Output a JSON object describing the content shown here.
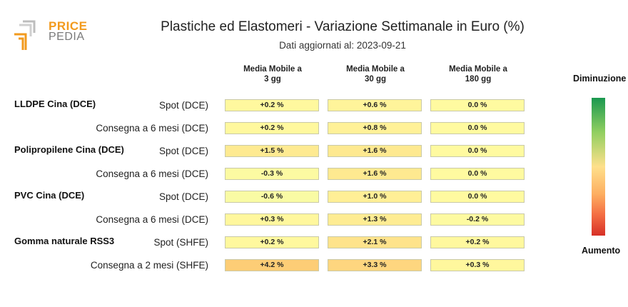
{
  "header": {
    "logo_line1": "PRICE",
    "logo_line2": "PEDIA",
    "title": "Plastiche ed Elastomeri - Variazione Settimanale in Euro (%)",
    "subtitle": "Dati aggiornati al: 2023-09-21"
  },
  "columns": [
    {
      "line1": "Media Mobile a",
      "line2": "3 gg"
    },
    {
      "line1": "Media Mobile a",
      "line2": "30 gg"
    },
    {
      "line1": "Media Mobile a",
      "line2": "180 gg"
    }
  ],
  "legend": {
    "top_label": "Diminuzione",
    "bottom_label": "Aumento",
    "colors": [
      "#1a9850",
      "#91cf60",
      "#fee08b",
      "#fdae61",
      "#f46d43",
      "#d73027"
    ]
  },
  "chart_data": {
    "type": "heatmap",
    "title": "Plastiche ed Elastomeri - Variazione Settimanale in Euro (%)",
    "subtitle": "Dati aggiornati al: 2023-09-21",
    "columns": [
      "Media Mobile a 3 gg",
      "Media Mobile a 30 gg",
      "Media Mobile a 180 gg"
    ],
    "color_scale": {
      "low_label": "Diminuzione",
      "high_label": "Aumento"
    },
    "rows": [
      {
        "group": "LLDPE Cina (DCE)",
        "label": "Spot (DCE)",
        "values": [
          0.2,
          0.6,
          0.0
        ],
        "texts": [
          "+0.2 %",
          "+0.6 %",
          "0.0 %"
        ]
      },
      {
        "group": "",
        "label": "Consegna a 6 mesi (DCE)",
        "values": [
          0.2,
          0.8,
          0.0
        ],
        "texts": [
          "+0.2 %",
          "+0.8 %",
          "0.0 %"
        ]
      },
      {
        "group": "Polipropilene Cina (DCE)",
        "label": "Spot (DCE)",
        "values": [
          1.5,
          1.6,
          0.0
        ],
        "texts": [
          "+1.5 %",
          "+1.6 %",
          "0.0 %"
        ]
      },
      {
        "group": "",
        "label": "Consegna a 6 mesi (DCE)",
        "values": [
          -0.3,
          1.6,
          0.0
        ],
        "texts": [
          "-0.3 %",
          "+1.6 %",
          "0.0 %"
        ]
      },
      {
        "group": "PVC Cina (DCE)",
        "label": "Spot (DCE)",
        "values": [
          -0.6,
          1.0,
          0.0
        ],
        "texts": [
          "-0.6 %",
          "+1.0 %",
          "0.0 %"
        ]
      },
      {
        "group": "",
        "label": "Consegna a 6 mesi (DCE)",
        "values": [
          0.3,
          1.3,
          -0.2
        ],
        "texts": [
          "+0.3 %",
          "+1.3 %",
          "-0.2 %"
        ]
      },
      {
        "group": "Gomma naturale RSS3",
        "label": "Spot (SHFE)",
        "values": [
          0.2,
          2.1,
          0.2
        ],
        "texts": [
          "+0.2 %",
          "+2.1 %",
          "+0.2 %"
        ]
      },
      {
        "group": "",
        "label": "Consegna a 2 mesi (SHFE)",
        "values": [
          4.2,
          3.3,
          0.3
        ],
        "texts": [
          "+4.2 %",
          "+3.3 %",
          "+0.3 %"
        ]
      }
    ]
  }
}
